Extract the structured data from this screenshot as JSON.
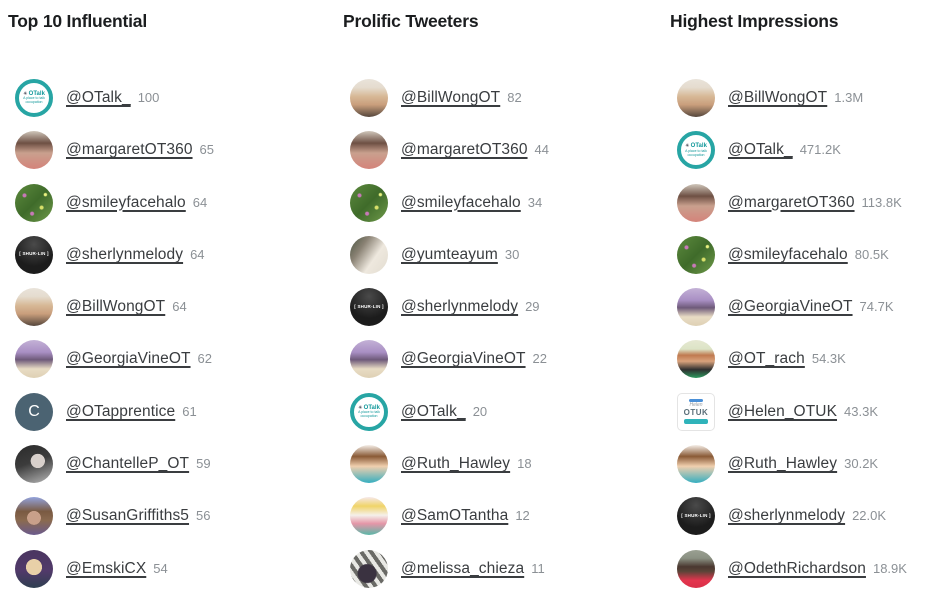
{
  "columns": [
    {
      "title": "Top 10 Influential",
      "rows": [
        {
          "user": "@OTalk_",
          "value": "100",
          "avatar": "otalk",
          "avatar_label": "OTalk",
          "avatar_sub": "A place to talk occupation"
        },
        {
          "user": "@margaretOT360",
          "value": "65",
          "avatar": "margaret"
        },
        {
          "user": "@smileyfacehalo",
          "value": "64",
          "avatar": "smiley"
        },
        {
          "user": "@sherlynmelody",
          "value": "64",
          "avatar": "shurlin",
          "avatar_label": "[ SHUR-LIN ]"
        },
        {
          "user": "@BillWongOT",
          "value": "64",
          "avatar": "billwong"
        },
        {
          "user": "@GeorgiaVineOT",
          "value": "62",
          "avatar": "georgia"
        },
        {
          "user": "@OTapprentice",
          "value": "61",
          "avatar": "otapp",
          "avatar_label": "C"
        },
        {
          "user": "@ChantelleP_OT",
          "value": "59",
          "avatar": "chantelle"
        },
        {
          "user": "@SusanGriffiths5",
          "value": "56",
          "avatar": "susan"
        },
        {
          "user": "@EmskiCX",
          "value": "54",
          "avatar": "emski"
        }
      ]
    },
    {
      "title": "Prolific Tweeters",
      "rows": [
        {
          "user": "@BillWongOT",
          "value": "82",
          "avatar": "billwong"
        },
        {
          "user": "@margaretOT360",
          "value": "44",
          "avatar": "margaret"
        },
        {
          "user": "@smileyfacehalo",
          "value": "34",
          "avatar": "smiley"
        },
        {
          "user": "@yumteayum",
          "value": "30",
          "avatar": "yumteayum"
        },
        {
          "user": "@sherlynmelody",
          "value": "29",
          "avatar": "shurlin",
          "avatar_label": "[ SHUR-LIN ]"
        },
        {
          "user": "@GeorgiaVineOT",
          "value": "22",
          "avatar": "georgia"
        },
        {
          "user": "@OTalk_",
          "value": "20",
          "avatar": "otalk",
          "avatar_label": "OTalk",
          "avatar_sub": "A place to talk occupation"
        },
        {
          "user": "@Ruth_Hawley",
          "value": "18",
          "avatar": "ruth"
        },
        {
          "user": "@SamOTantha",
          "value": "12",
          "avatar": "samotantha"
        },
        {
          "user": "@melissa_chieza",
          "value": "11",
          "avatar": "melissa"
        }
      ]
    },
    {
      "title": "Highest Impressions",
      "rows": [
        {
          "user": "@BillWongOT",
          "value": "1.3M",
          "avatar": "billwong"
        },
        {
          "user": "@OTalk_",
          "value": "471.2K",
          "avatar": "otalk",
          "avatar_label": "OTalk",
          "avatar_sub": "A place to talk occupation"
        },
        {
          "user": "@margaretOT360",
          "value": "113.8K",
          "avatar": "margaret"
        },
        {
          "user": "@smileyfacehalo",
          "value": "80.5K",
          "avatar": "smiley"
        },
        {
          "user": "@GeorgiaVineOT",
          "value": "74.7K",
          "avatar": "georgia"
        },
        {
          "user": "@OT_rach",
          "value": "54.3K",
          "avatar": "otrach"
        },
        {
          "user": "@Helen_OTUK",
          "value": "43.3K",
          "avatar": "helen",
          "avatar_label": "OTUK",
          "avatar_sub": "Helen"
        },
        {
          "user": "@Ruth_Hawley",
          "value": "30.2K",
          "avatar": "ruth"
        },
        {
          "user": "@sherlynmelody",
          "value": "22.0K",
          "avatar": "shurlin",
          "avatar_label": "[ SHUR-LIN ]"
        },
        {
          "user": "@OdethRichardson",
          "value": "18.9K",
          "avatar": "odeth"
        }
      ]
    }
  ],
  "colors": {
    "title_text": "#1b1d1f",
    "link_text": "#3a3d40",
    "metric_text": "#8b9095",
    "otalk_teal": "#27a5a4",
    "background": "#ffffff"
  }
}
